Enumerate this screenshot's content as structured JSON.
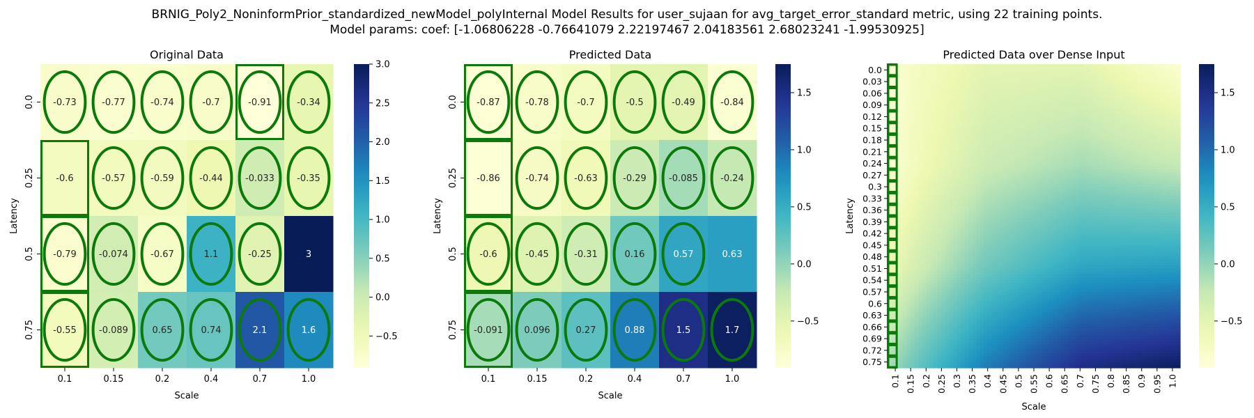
{
  "figure": {
    "title_line1": "BRNIG_Poly2_NoninformPrior_standardized_newModel_polyInternal Model Results for user_sujaan for avg_target_error_standard metric, using 22 training points.",
    "title_line2": "Model params: coef: [-1.06806228 -0.76641079  2.22197467  2.04183561  2.68023241 -1.99530925]"
  },
  "chart_data": [
    {
      "type": "heatmap",
      "title": "Original Data",
      "xlabel": "Scale",
      "ylabel": "Latency",
      "x": [
        "0.1",
        "0.15",
        "0.2",
        "0.4",
        "0.7",
        "1.0"
      ],
      "y": [
        "0.0",
        "0.25",
        "0.5",
        "0.75"
      ],
      "values": [
        [
          -0.73,
          -0.77,
          -0.74,
          -0.7,
          -0.91,
          -0.34
        ],
        [
          -0.6,
          -0.57,
          -0.59,
          -0.44,
          -0.033,
          -0.35
        ],
        [
          -0.79,
          -0.074,
          -0.67,
          1.1,
          -0.25,
          3.0
        ],
        [
          -0.55,
          -0.089,
          0.65,
          0.74,
          2.1,
          1.6
        ]
      ],
      "labels": [
        [
          "-0.73",
          "-0.77",
          "-0.74",
          "-0.7",
          "-0.91",
          "-0.34"
        ],
        [
          "-0.6",
          "-0.57",
          "-0.59",
          "-0.44",
          "-0.033",
          "-0.35"
        ],
        [
          "-0.79",
          "-0.074",
          "-0.67",
          "1.1",
          "-0.25",
          "3"
        ],
        [
          "-0.55",
          "-0.089",
          "0.65",
          "0.74",
          "2.1",
          "1.6"
        ]
      ],
      "vmin": -0.91,
      "vmax": 3.0,
      "colormap": "YlGnBu",
      "colorbar_ticks": [
        "3.0",
        "2.5",
        "2.0",
        "1.5",
        "1.0",
        "0.5",
        "0.0",
        "−0.5"
      ],
      "colorbar_tick_values": [
        3.0,
        2.5,
        2.0,
        1.5,
        1.0,
        0.5,
        0.0,
        -0.5
      ],
      "ellipse_cells": [
        [
          0,
          0
        ],
        [
          0,
          1
        ],
        [
          0,
          2
        ],
        [
          0,
          3
        ],
        [
          0,
          4
        ],
        [
          0,
          5
        ],
        [
          1,
          1
        ],
        [
          1,
          2
        ],
        [
          1,
          3
        ],
        [
          1,
          4
        ],
        [
          1,
          5
        ],
        [
          2,
          0
        ],
        [
          2,
          1
        ],
        [
          2,
          2
        ],
        [
          2,
          3
        ],
        [
          2,
          4
        ],
        [
          3,
          0
        ],
        [
          3,
          1
        ],
        [
          3,
          2
        ],
        [
          3,
          3
        ],
        [
          3,
          4
        ],
        [
          3,
          5
        ]
      ],
      "box_cells": [
        [
          0,
          4
        ],
        [
          1,
          0
        ],
        [
          2,
          0
        ],
        [
          3,
          0
        ]
      ],
      "marker_color": "#0b7a0b"
    },
    {
      "type": "heatmap",
      "title": "Predicted Data",
      "xlabel": "Scale",
      "ylabel": "Latency",
      "x": [
        "0.1",
        "0.15",
        "0.2",
        "0.4",
        "0.7",
        "1.0"
      ],
      "y": [
        "0.0",
        "0.25",
        "0.5",
        "0.75"
      ],
      "values": [
        [
          -0.87,
          -0.78,
          -0.7,
          -0.5,
          -0.49,
          -0.84
        ],
        [
          -0.86,
          -0.74,
          -0.63,
          -0.29,
          -0.085,
          -0.24
        ],
        [
          -0.6,
          -0.45,
          -0.31,
          0.16,
          0.57,
          0.63
        ],
        [
          -0.091,
          0.096,
          0.27,
          0.88,
          1.5,
          1.7
        ]
      ],
      "labels": [
        [
          "-0.87",
          "-0.78",
          "-0.7",
          "-0.5",
          "-0.49",
          "-0.84"
        ],
        [
          "-0.86",
          "-0.74",
          "-0.63",
          "-0.29",
          "-0.085",
          "-0.24"
        ],
        [
          "-0.6",
          "-0.45",
          "-0.31",
          "0.16",
          "0.57",
          "0.63"
        ],
        [
          "-0.091",
          "0.096",
          "0.27",
          "0.88",
          "1.5",
          "1.7"
        ]
      ],
      "vmin": -0.91,
      "vmax": 1.75,
      "colormap": "YlGnBu",
      "colorbar_ticks": [
        "1.5",
        "1.0",
        "0.5",
        "0.0",
        "−0.5"
      ],
      "colorbar_tick_values": [
        1.5,
        1.0,
        0.5,
        0.0,
        -0.5
      ],
      "ellipse_cells": [
        [
          0,
          0
        ],
        [
          0,
          1
        ],
        [
          0,
          2
        ],
        [
          0,
          3
        ],
        [
          0,
          4
        ],
        [
          0,
          5
        ],
        [
          1,
          1
        ],
        [
          1,
          2
        ],
        [
          1,
          3
        ],
        [
          1,
          4
        ],
        [
          1,
          5
        ],
        [
          2,
          0
        ],
        [
          2,
          1
        ],
        [
          2,
          2
        ],
        [
          2,
          3
        ],
        [
          2,
          4
        ],
        [
          3,
          0
        ],
        [
          3,
          1
        ],
        [
          3,
          2
        ],
        [
          3,
          3
        ],
        [
          3,
          4
        ],
        [
          3,
          5
        ]
      ],
      "box_cells": [
        [
          0,
          0
        ],
        [
          1,
          0
        ],
        [
          2,
          0
        ],
        [
          3,
          0
        ]
      ],
      "marker_color": "#0b7a0b"
    },
    {
      "type": "heatmap",
      "title": "Predicted Data over Dense Input",
      "xlabel": "Scale",
      "ylabel": "Latency",
      "x": [
        "0.1",
        "0.15",
        "0.2",
        "0.25",
        "0.3",
        "0.35",
        "0.4",
        "0.45",
        "0.5",
        "0.55",
        "0.6",
        "0.65",
        "0.7",
        "0.75",
        "0.8",
        "0.85",
        "0.9",
        "0.95",
        "1.0"
      ],
      "y": [
        "0.0",
        "0.03",
        "0.06",
        "0.09",
        "0.12",
        "0.15",
        "0.18",
        "0.21",
        "0.24",
        "0.27",
        "0.3",
        "0.33",
        "0.36",
        "0.39",
        "0.42",
        "0.45",
        "0.48",
        "0.51",
        "0.54",
        "0.57",
        "0.6",
        "0.63",
        "0.66",
        "0.69",
        "0.72",
        "0.75"
      ],
      "vmin": -0.91,
      "vmax": 1.75,
      "colormap": "YlGnBu",
      "colorbar_ticks": [
        "1.5",
        "1.0",
        "0.5",
        "0.0",
        "−0.5"
      ],
      "colorbar_tick_values": [
        1.5,
        1.0,
        0.5,
        0.0,
        -0.5
      ],
      "first_column_boxed": true,
      "marker_color": "#0b7a0b"
    }
  ]
}
